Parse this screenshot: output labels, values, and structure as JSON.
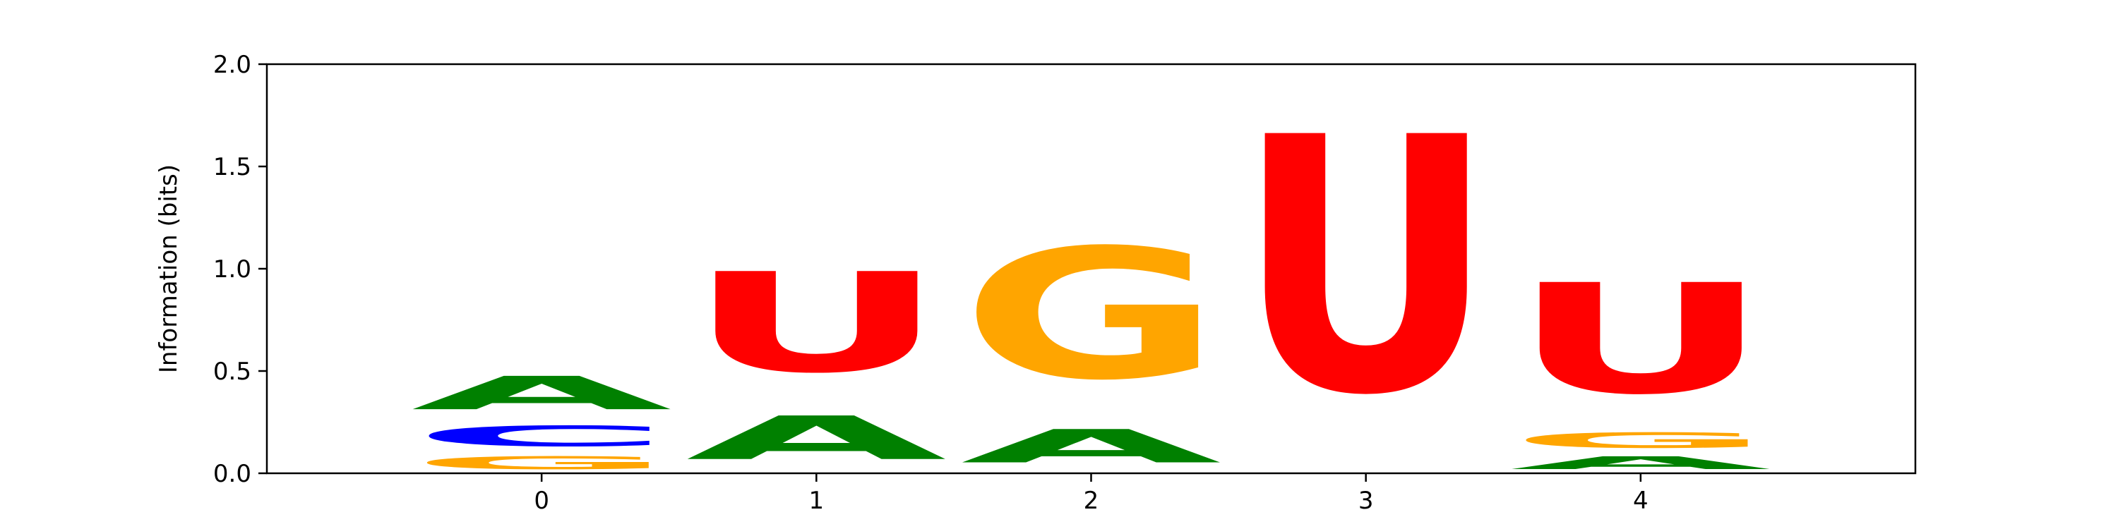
{
  "chart_data": {
    "type": "sequence-logo",
    "title": "",
    "xlabel": "",
    "ylabel": "Information (bits)",
    "ylim": [
      0,
      2.0
    ],
    "yticks": [
      "0.0",
      "0.5",
      "1.0",
      "1.5",
      "2.0"
    ],
    "xticks": [
      "0",
      "1",
      "2",
      "3",
      "4"
    ],
    "grid": false,
    "colors": {
      "A": "#008000",
      "C": "#0000ff",
      "G": "#ffa500",
      "U": "#ff0000"
    },
    "positions": [
      {
        "x": 0,
        "stack": [
          {
            "letter": "G",
            "bits": 0.1
          },
          {
            "letter": "C",
            "bits": 0.16
          },
          {
            "letter": "A",
            "bits": 0.26
          }
        ]
      },
      {
        "x": 1,
        "stack": [
          {
            "letter": "A",
            "bits": 0.34
          },
          {
            "letter": "U",
            "bits": 0.78
          }
        ]
      },
      {
        "x": 2,
        "stack": [
          {
            "letter": "A",
            "bits": 0.26
          },
          {
            "letter": "G",
            "bits": 1.02
          }
        ]
      },
      {
        "x": 3,
        "stack": [
          {
            "letter": "U",
            "bits": 2.0
          }
        ]
      },
      {
        "x": 4,
        "stack": [
          {
            "letter": "A",
            "bits": 0.1
          },
          {
            "letter": "G",
            "bits": 0.12
          },
          {
            "letter": "U",
            "bits": 0.86
          }
        ]
      }
    ]
  }
}
